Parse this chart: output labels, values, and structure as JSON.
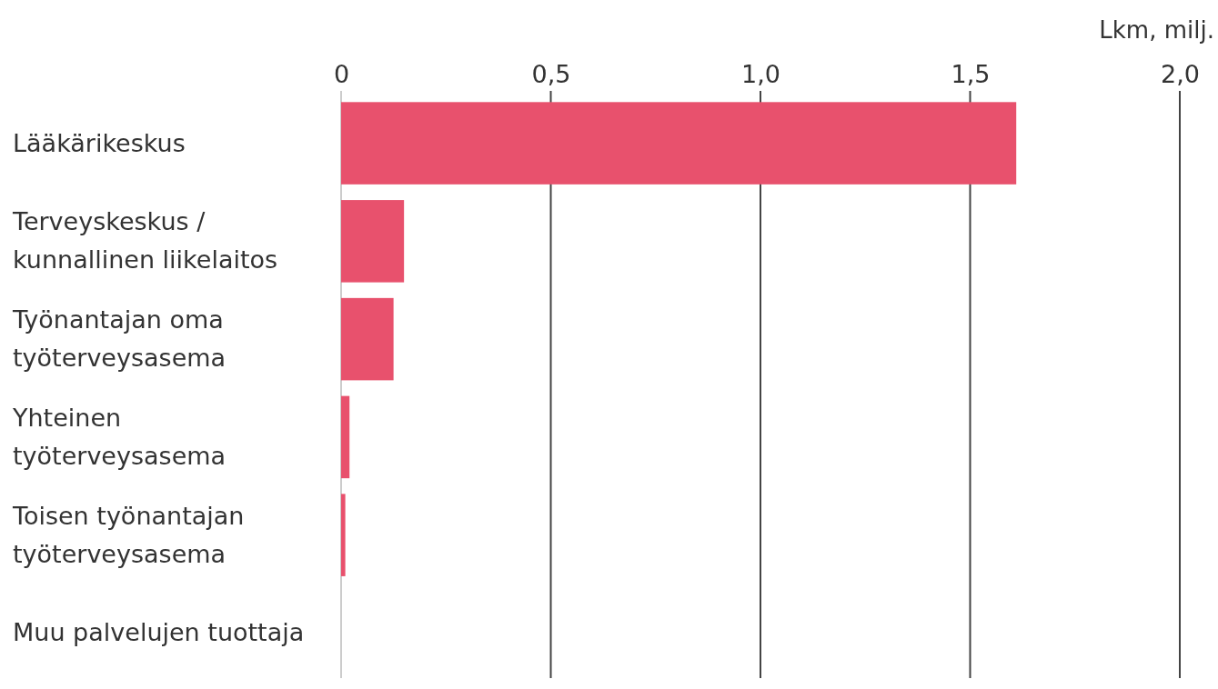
{
  "chart_data": {
    "type": "bar",
    "orientation": "horizontal",
    "xlabel": "Lkm, milj.",
    "categories": [
      "Lääkärikeskus",
      "Terveyskeskus / kunnallinen liikelaitos",
      "Työnantajan oma työterveysasema",
      "Yhteinen työterveysasema",
      "Toisen työnantajan työterveysasema",
      "Muu palvelujen tuottaja"
    ],
    "values": [
      1.61,
      0.15,
      0.125,
      0.02,
      0.01,
      0
    ],
    "color": "#e8516d",
    "xlim": [
      0,
      2.0
    ],
    "xticks": [
      {
        "value": 0,
        "label": "0"
      },
      {
        "value": 0.5,
        "label": "0,5"
      },
      {
        "value": 1,
        "label": "1,0"
      },
      {
        "value": 1.5,
        "label": "1,5"
      },
      {
        "value": 2,
        "label": "2,0"
      }
    ],
    "grid": "x"
  }
}
